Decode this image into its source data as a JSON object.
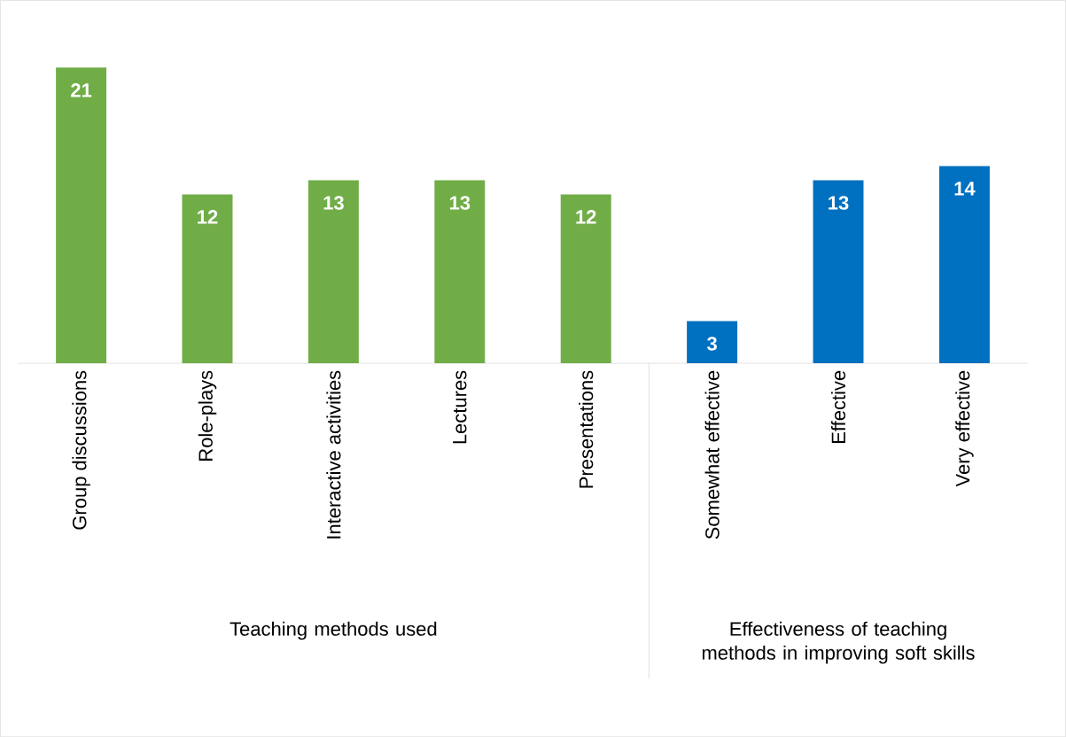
{
  "chart_data": {
    "type": "bar",
    "categories": [
      "Group discussions",
      "Role-plays",
      "Interactive activities",
      "Lectures",
      "Presentations",
      "Somewhat effective",
      "Effective",
      "Very effective"
    ],
    "values": [
      21,
      12,
      13,
      13,
      12,
      3,
      13,
      14
    ],
    "colors": [
      "#70ad47",
      "#70ad47",
      "#70ad47",
      "#70ad47",
      "#70ad47",
      "#0070c0",
      "#0070c0",
      "#0070c0"
    ],
    "annotations": [
      "Teaching methods used",
      "Effectiveness of teaching methods in improving soft skills"
    ],
    "data_labels": true
  }
}
